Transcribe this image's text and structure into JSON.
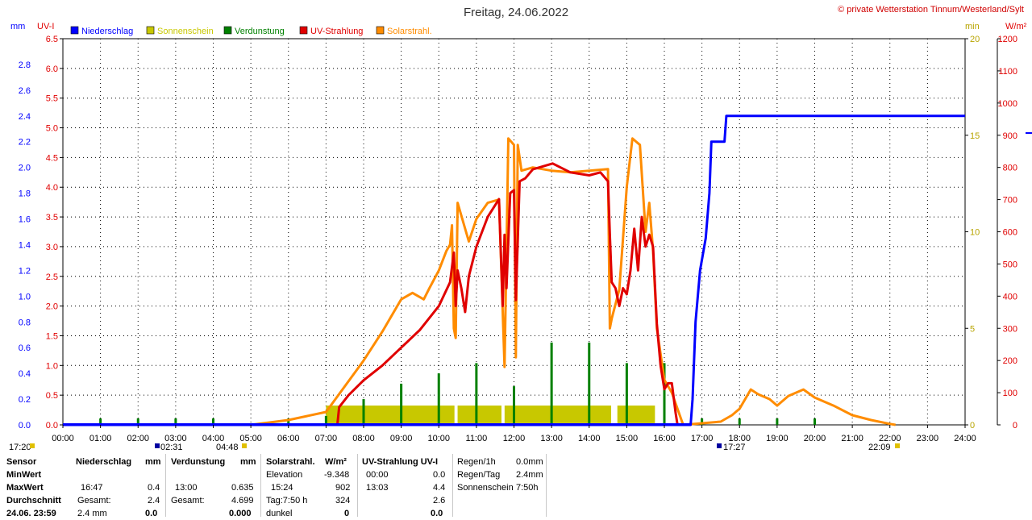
{
  "title": "Freitag, 24.06.2022",
  "copyright": "© private Wetterstation Tinnum/Westerland/Sylt",
  "colors": {
    "niederschlag": "#0000ff",
    "sonnenschein": "#c8c800",
    "verdunstung": "#008000",
    "uv": "#e00000",
    "solar": "#ff8c00",
    "bg": "#ffffff",
    "grid": "#000000"
  },
  "chart_data": {
    "type": "line",
    "title": "Freitag, 24.06.2022",
    "legend": [
      "Niederschlag",
      "Sonnenschein",
      "Verdunstung",
      "UV-Strahlung",
      "Solarstrahl."
    ],
    "axes": {
      "mm": {
        "label": "mm",
        "range": [
          0,
          3.0
        ],
        "ticks": [
          "0.0",
          "0.2",
          "0.4",
          "0.6",
          "0.8",
          "1.0",
          "1.2",
          "1.4",
          "1.6",
          "1.8",
          "2.0",
          "2.2",
          "2.4",
          "2.6",
          "2.8"
        ]
      },
      "uv": {
        "label": "UV-I",
        "range": [
          0,
          6.5
        ],
        "ticks": [
          "0.0",
          "0.5",
          "1.0",
          "1.5",
          "2.0",
          "2.5",
          "3.0",
          "3.5",
          "4.0",
          "4.5",
          "5.0",
          "5.5",
          "6.0",
          "6.5"
        ]
      },
      "min": {
        "label": "min",
        "range": [
          0,
          20
        ],
        "ticks": [
          "0",
          "5",
          "10",
          "15",
          "20"
        ]
      },
      "wm2": {
        "label": "W/m²",
        "range": [
          0,
          1200
        ],
        "ticks": [
          "0",
          "100",
          "200",
          "300",
          "400",
          "500",
          "600",
          "700",
          "800",
          "900",
          "1000",
          "1100",
          "1200"
        ]
      },
      "x": {
        "range_hours": [
          0,
          24
        ],
        "ticks": [
          "00:00",
          "01:00",
          "02:00",
          "03:00",
          "04:00",
          "05:00",
          "06:00",
          "07:00",
          "08:00",
          "09:00",
          "10:00",
          "11:00",
          "12:00",
          "13:00",
          "14:00",
          "15:00",
          "16:00",
          "17:00",
          "18:00",
          "19:00",
          "20:00",
          "21:00",
          "22:00",
          "23:00",
          "24:00"
        ]
      }
    },
    "time_markers": [
      "17:20",
      "02:31",
      "04:48",
      "17:27",
      "22:09"
    ],
    "series": [
      {
        "name": "Niederschlag",
        "unit": "mm",
        "points": [
          [
            0,
            0
          ],
          [
            16.7,
            0
          ],
          [
            16.75,
            0.2
          ],
          [
            16.83,
            0.8
          ],
          [
            16.95,
            1.2
          ],
          [
            17.1,
            1.45
          ],
          [
            17.2,
            1.8
          ],
          [
            17.25,
            2.2
          ],
          [
            17.6,
            2.2
          ],
          [
            17.65,
            2.4
          ],
          [
            24,
            2.4
          ]
        ]
      },
      {
        "name": "UV-Strahlung",
        "unit": "UV-I",
        "points": [
          [
            7.3,
            0
          ],
          [
            7.35,
            0.3
          ],
          [
            7.6,
            0.5
          ],
          [
            8.0,
            0.75
          ],
          [
            8.5,
            1.0
          ],
          [
            9.0,
            1.3
          ],
          [
            9.5,
            1.6
          ],
          [
            10.0,
            2.0
          ],
          [
            10.3,
            2.4
          ],
          [
            10.4,
            2.9
          ],
          [
            10.45,
            2.0
          ],
          [
            10.5,
            2.6
          ],
          [
            10.6,
            2.3
          ],
          [
            10.7,
            1.9
          ],
          [
            10.8,
            2.5
          ],
          [
            11.0,
            3.0
          ],
          [
            11.3,
            3.5
          ],
          [
            11.6,
            3.8
          ],
          [
            11.7,
            2.0
          ],
          [
            11.75,
            3.2
          ],
          [
            11.8,
            2.3
          ],
          [
            11.9,
            3.9
          ],
          [
            12.0,
            3.95
          ],
          [
            12.05,
            2.1
          ],
          [
            12.15,
            4.1
          ],
          [
            12.3,
            4.15
          ],
          [
            12.5,
            4.3
          ],
          [
            13.03,
            4.4
          ],
          [
            13.5,
            4.25
          ],
          [
            14.0,
            4.2
          ],
          [
            14.3,
            4.25
          ],
          [
            14.5,
            4.1
          ],
          [
            14.55,
            3.2
          ],
          [
            14.6,
            2.4
          ],
          [
            14.7,
            2.3
          ],
          [
            14.8,
            2.0
          ],
          [
            14.9,
            2.3
          ],
          [
            15.0,
            2.2
          ],
          [
            15.1,
            2.6
          ],
          [
            15.2,
            3.3
          ],
          [
            15.3,
            2.6
          ],
          [
            15.4,
            3.5
          ],
          [
            15.5,
            3.0
          ],
          [
            15.6,
            3.2
          ],
          [
            15.7,
            3.0
          ],
          [
            15.8,
            1.7
          ],
          [
            15.9,
            1.0
          ],
          [
            16.0,
            0.6
          ],
          [
            16.1,
            0.7
          ],
          [
            16.2,
            0.7
          ],
          [
            16.3,
            0.2
          ],
          [
            16.35,
            0
          ]
        ]
      },
      {
        "name": "Solarstrahl.",
        "unit": "W/m²",
        "points": [
          [
            5.0,
            0
          ],
          [
            6.0,
            15
          ],
          [
            7.0,
            40
          ],
          [
            7.5,
            120
          ],
          [
            8.0,
            200
          ],
          [
            8.5,
            290
          ],
          [
            9.0,
            390
          ],
          [
            9.3,
            410
          ],
          [
            9.6,
            390
          ],
          [
            9.75,
            425
          ],
          [
            10.0,
            480
          ],
          [
            10.2,
            540
          ],
          [
            10.3,
            560
          ],
          [
            10.35,
            620
          ],
          [
            10.4,
            300
          ],
          [
            10.45,
            270
          ],
          [
            10.5,
            690
          ],
          [
            10.8,
            570
          ],
          [
            11.0,
            640
          ],
          [
            11.3,
            690
          ],
          [
            11.6,
            700
          ],
          [
            11.75,
            180
          ],
          [
            11.85,
            890
          ],
          [
            12.0,
            870
          ],
          [
            12.05,
            210
          ],
          [
            12.1,
            870
          ],
          [
            12.2,
            790
          ],
          [
            12.5,
            800
          ],
          [
            13.0,
            790
          ],
          [
            13.5,
            785
          ],
          [
            14.0,
            790
          ],
          [
            14.5,
            795
          ],
          [
            14.55,
            300
          ],
          [
            14.6,
            330
          ],
          [
            14.8,
            420
          ],
          [
            15.0,
            740
          ],
          [
            15.15,
            890
          ],
          [
            15.25,
            880
          ],
          [
            15.35,
            870
          ],
          [
            15.5,
            600
          ],
          [
            15.6,
            690
          ],
          [
            15.7,
            540
          ],
          [
            15.8,
            300
          ],
          [
            16.0,
            140
          ],
          [
            16.2,
            100
          ],
          [
            16.5,
            0
          ],
          [
            17.5,
            10
          ],
          [
            17.8,
            30
          ],
          [
            18.0,
            50
          ],
          [
            18.3,
            110
          ],
          [
            18.5,
            95
          ],
          [
            18.8,
            80
          ],
          [
            19.0,
            60
          ],
          [
            19.3,
            90
          ],
          [
            19.5,
            100
          ],
          [
            19.7,
            110
          ],
          [
            20.0,
            85
          ],
          [
            20.5,
            60
          ],
          [
            21.0,
            30
          ],
          [
            21.5,
            15
          ],
          [
            22.0,
            3
          ],
          [
            22.15,
            0
          ]
        ]
      }
    ],
    "sunshine_bars_min": [
      {
        "start": "07:00",
        "end": "10:25",
        "value": 1
      },
      {
        "start": "10:30",
        "end": "11:40",
        "value": 1
      },
      {
        "start": "11:45",
        "end": "14:35",
        "value": 1
      },
      {
        "start": "14:45",
        "end": "15:45",
        "value": 1
      }
    ],
    "evaporation_spikes_mm": [
      [
        1,
        0.05
      ],
      [
        2,
        0.05
      ],
      [
        3,
        0.05
      ],
      [
        4,
        0.05
      ],
      [
        6,
        0.05
      ],
      [
        7,
        0.07
      ],
      [
        8,
        0.2
      ],
      [
        9,
        0.32
      ],
      [
        10,
        0.4
      ],
      [
        11,
        0.48
      ],
      [
        12,
        0.3
      ],
      [
        13,
        0.64
      ],
      [
        14,
        0.64
      ],
      [
        15,
        0.48
      ],
      [
        16,
        0.48
      ],
      [
        17,
        0.05
      ],
      [
        18,
        0.05
      ],
      [
        19,
        0.05
      ],
      [
        20,
        0.05
      ]
    ]
  },
  "footer": {
    "col1": {
      "header": "Sensor",
      "rows": [
        "MinWert",
        "MaxWert",
        "Durchschnitt",
        "24.06. 23:59"
      ]
    },
    "col2": {
      "header": "Niederschlag",
      "unit": "mm",
      "min": "",
      "max_time": "16:47",
      "max_val": "0.4",
      "avg_label": "Gesamt:",
      "avg_val": "2.4",
      "last_label": "2.4 mm",
      "last_val": "0.0"
    },
    "col3": {
      "header": "Verdunstung",
      "unit": "mm",
      "max_time": "13:00",
      "max_val": "0.635",
      "avg_label": "Gesamt:",
      "avg_val": "4.699",
      "last_val": "0.000"
    },
    "col4": {
      "header": "Solarstrahl.",
      "unit": "W/m²",
      "min_label": "Elevation",
      "min_val": "-9.348",
      "max_time": "15:24",
      "max_val": "902",
      "avg_label": "Tag:7:50 h",
      "avg_val": "324",
      "last_label": "dunkel",
      "last_val": "0"
    },
    "col5": {
      "header": "UV-Strahlung UV-I",
      "min_time": "00:00",
      "min_val": "0.0",
      "max_time": "13:03",
      "max_val": "4.4",
      "avg_val": "2.6",
      "last_val": "0.0"
    },
    "col6": {
      "r1_label": "Regen/1h",
      "r1_val": "0.0mm",
      "r2_label": "Regen/Tag",
      "r2_val": "2.4mm",
      "r3_label": "Sonnenschein",
      "r3_val": "7:50h"
    }
  }
}
